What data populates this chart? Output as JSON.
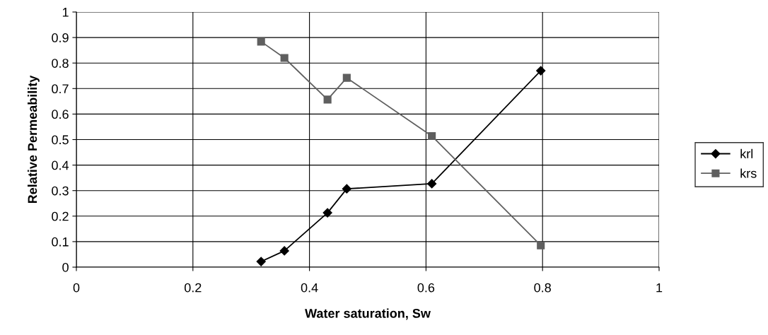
{
  "chart_data": {
    "type": "line",
    "xlabel": "Water saturation, Sw",
    "ylabel": "Relative Permeability",
    "series": [
      {
        "name": "krl",
        "color": "#000000",
        "marker": "diamond",
        "x": [
          0.317,
          0.357,
          0.431,
          0.464,
          0.61,
          0.797
        ],
        "values": [
          0.022,
          0.064,
          0.213,
          0.307,
          0.327,
          0.77
        ]
      },
      {
        "name": "krs",
        "color": "#5f5f5f",
        "marker": "square",
        "x": [
          0.317,
          0.357,
          0.431,
          0.464,
          0.61,
          0.797
        ],
        "values": [
          0.884,
          0.82,
          0.657,
          0.742,
          0.514,
          0.085
        ]
      }
    ],
    "xlim": [
      0,
      1
    ],
    "xticks": [
      0,
      0.2,
      0.4,
      0.6,
      0.8,
      1
    ],
    "ylim": [
      0,
      1
    ],
    "yticks": [
      0,
      0.1,
      0.2,
      0.3,
      0.4,
      0.5,
      0.6,
      0.7,
      0.8,
      0.9,
      1
    ],
    "grid": true,
    "legend": "right",
    "line_style": "solid"
  }
}
